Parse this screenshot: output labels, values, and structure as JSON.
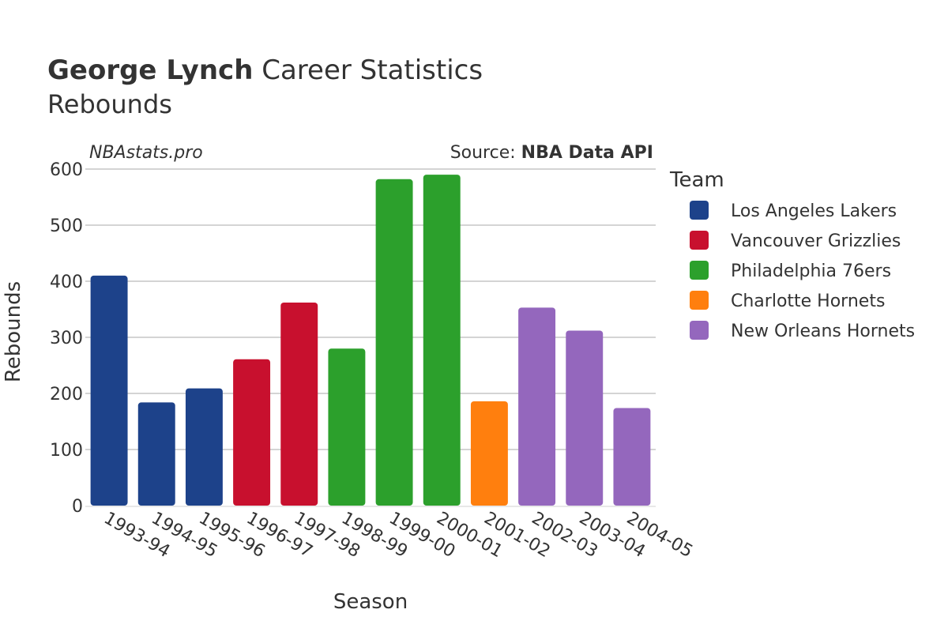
{
  "title": {
    "bold": "George Lynch",
    "rest": " Career Statistics"
  },
  "subtitle": "Rebounds",
  "watermark": "NBAstats.pro",
  "source": {
    "prefix": "Source: ",
    "bold": "NBA Data API"
  },
  "legend": {
    "title": "Team",
    "items": [
      {
        "label": "Los Angeles Lakers",
        "color": "#1d428a"
      },
      {
        "label": "Vancouver Grizzlies",
        "color": "#c8102e"
      },
      {
        "label": "Philadelphia 76ers",
        "color": "#2ca02c"
      },
      {
        "label": "Charlotte Hornets",
        "color": "#ff7f0e"
      },
      {
        "label": "New Orleans Hornets",
        "color": "#9467bd"
      }
    ]
  },
  "chart_data": {
    "type": "bar",
    "title": "George Lynch Career Statistics",
    "subtitle": "Rebounds",
    "xlabel": "Season",
    "ylabel": "Rebounds",
    "ylim": [
      0,
      600
    ],
    "yticks": [
      0,
      100,
      200,
      300,
      400,
      500,
      600
    ],
    "grid": true,
    "legend_position": "right",
    "categories": [
      "1993-94",
      "1994-95",
      "1995-96",
      "1996-97",
      "1997-98",
      "1998-99",
      "1999-00",
      "2000-01",
      "2001-02",
      "2002-03",
      "2003-04",
      "2004-05"
    ],
    "values": [
      410,
      184,
      209,
      261,
      362,
      280,
      582,
      590,
      186,
      353,
      312,
      174
    ],
    "teams": [
      "Los Angeles Lakers",
      "Los Angeles Lakers",
      "Los Angeles Lakers",
      "Vancouver Grizzlies",
      "Vancouver Grizzlies",
      "Philadelphia 76ers",
      "Philadelphia 76ers",
      "Philadelphia 76ers",
      "Charlotte Hornets",
      "New Orleans Hornets",
      "New Orleans Hornets",
      "New Orleans Hornets"
    ]
  }
}
